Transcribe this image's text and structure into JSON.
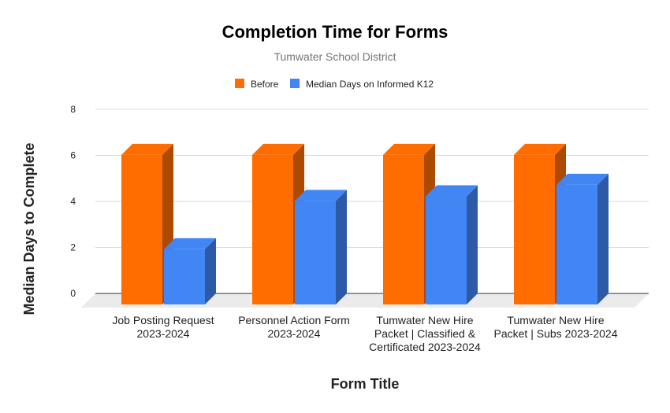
{
  "chart_data": {
    "type": "bar",
    "title": "Completion Time for Forms",
    "subtitle": "Tumwater School District",
    "xlabel": "Form Title",
    "ylabel": "Median Days to Complete",
    "ylim": [
      0,
      8
    ],
    "yticks": [
      "0",
      "2",
      "4",
      "6",
      "8"
    ],
    "grid": true,
    "legend_position": "top",
    "categories": [
      [
        "Job Posting Request",
        "2023-2024"
      ],
      [
        "Personnel Action Form",
        "2023-2024"
      ],
      [
        "Tumwater New Hire",
        "Packet | Classified &",
        "Certificated 2023-2024"
      ],
      [
        "Tumwater New Hire",
        "Packet | Subs 2023-2024"
      ]
    ],
    "series": [
      {
        "name": "Before",
        "color": "#ff6d01",
        "values": [
          6.5,
          6.5,
          6.5,
          6.5
        ]
      },
      {
        "name": "Median Days on Informed K12",
        "color": "#4285f4",
        "values": [
          2.4,
          4.5,
          4.7,
          5.2
        ]
      }
    ]
  }
}
